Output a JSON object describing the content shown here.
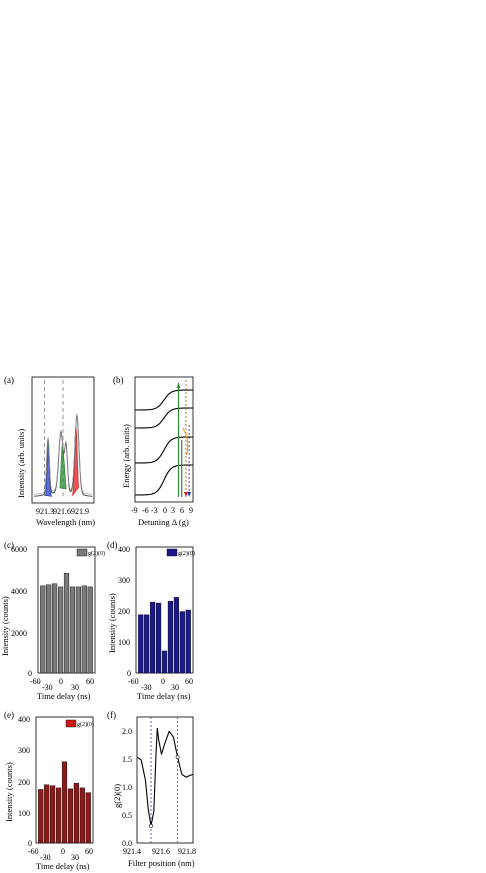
{
  "panels": [
    {
      "id": "a",
      "label": "(a)",
      "xlabel": "Wavelength (nm)",
      "ylabel": "Intensity (arb. units)"
    },
    {
      "id": "b",
      "label": "(b)",
      "xlabel": "Detuning Δ (g)",
      "ylabel": "Energy (arb. units)"
    },
    {
      "id": "c",
      "label": "(c)",
      "xlabel": "Time delay (ns)",
      "ylabel": "Intensity (counts)"
    },
    {
      "id": "d",
      "label": "(d)",
      "xlabel": "Time delay (ns)",
      "ylabel": "Intensity (counts)"
    },
    {
      "id": "e",
      "label": "(e)",
      "xlabel": "Time delay (ns)",
      "ylabel": "Intensity (counts)"
    },
    {
      "id": "f",
      "label": "(f)",
      "xlabel": "Filter position (nm)",
      "ylabel": "g(2)(0)"
    }
  ],
  "chart_data": [
    {
      "id": "a",
      "type": "line",
      "x_ticks": [
        "921.3",
        "921.6",
        "921.9"
      ],
      "xlim": [
        921.3,
        921.9
      ],
      "filters": [
        {
          "center": 921.46,
          "color": "#2b3fbf"
        },
        {
          "center": 921.6,
          "color": "#2e8b3a"
        },
        {
          "center": 921.72,
          "color": "#e02020"
        }
      ],
      "dashed_lines": [
        921.42,
        921.6
      ]
    },
    {
      "id": "b",
      "type": "line",
      "x_ticks": [
        "-9",
        "-6",
        "-3",
        "0",
        "3",
        "6",
        "9"
      ],
      "xlim": [
        -9,
        9
      ]
    },
    {
      "id": "c",
      "type": "bar",
      "legend": "g(2)(0)",
      "legend_color": "#7a7a7a",
      "bar_color": "#7a7a7a",
      "x_ticks": [
        "-60",
        "-30",
        "0",
        "30",
        "60"
      ],
      "y_ticks": [
        "0",
        "2000",
        "4000",
        "6000"
      ],
      "ylim": [
        0,
        6000
      ],
      "delays": [
        -50,
        -37.5,
        -25,
        -12.5,
        0,
        12.5,
        25,
        37.5,
        50
      ],
      "values": [
        4150,
        4200,
        4250,
        4100,
        4750,
        4100,
        4100,
        4150,
        4100
      ]
    },
    {
      "id": "d",
      "type": "bar",
      "legend": "g(2)(0)",
      "legend_color": "#1a1a8c",
      "bar_color": "#1a1a8c",
      "x_ticks": [
        "-60",
        "-30",
        "0",
        "30",
        "60"
      ],
      "y_ticks": [
        "0",
        "100",
        "200",
        "300",
        "400"
      ],
      "ylim": [
        0,
        400
      ],
      "delays": [
        -50,
        -37.5,
        -25,
        -12.5,
        0,
        12.5,
        25,
        37.5,
        50
      ],
      "values": [
        185,
        185,
        225,
        222,
        70,
        228,
        240,
        195,
        200
      ]
    },
    {
      "id": "e",
      "type": "bar",
      "legend": "g(2)(0)",
      "legend_color": "#cc1a1a",
      "bar_color": "#8b1a1a",
      "x_ticks": [
        "-60",
        "-30",
        "0",
        "30",
        "60"
      ],
      "y_ticks": [
        "0",
        "100",
        "200",
        "300",
        "400"
      ],
      "ylim": [
        0,
        400
      ],
      "delays": [
        -50,
        -37.5,
        -25,
        -12.5,
        0,
        12.5,
        25,
        37.5,
        50
      ],
      "values": [
        170,
        185,
        182,
        175,
        258,
        172,
        190,
        175,
        160
      ]
    },
    {
      "id": "f",
      "type": "line",
      "x_ticks": [
        "921.4",
        "921.6",
        "921.8"
      ],
      "xlim": [
        921.4,
        921.8
      ],
      "y_ticks": [
        "0.0",
        "0.5",
        "1.0",
        "1.5",
        "2.0"
      ],
      "ylim": [
        0,
        2.2
      ],
      "points": [
        [
          921.4,
          1.5
        ],
        [
          921.43,
          1.45
        ],
        [
          921.46,
          1.1
        ],
        [
          921.48,
          0.6
        ],
        [
          921.5,
          0.3
        ],
        [
          921.52,
          0.55
        ],
        [
          921.535,
          1.5
        ],
        [
          921.545,
          2.0
        ],
        [
          921.555,
          1.8
        ],
        [
          921.575,
          1.55
        ],
        [
          921.6,
          1.75
        ],
        [
          921.63,
          1.95
        ],
        [
          921.66,
          1.85
        ],
        [
          921.69,
          1.5
        ],
        [
          921.72,
          1.2
        ],
        [
          921.75,
          1.15
        ],
        [
          921.8,
          1.2
        ]
      ],
      "markers": [
        [
          921.5,
          0.3
        ],
        [
          921.69,
          1.5
        ]
      ],
      "vlines": [
        {
          "x": 921.5,
          "color": "#2b3fbf"
        },
        {
          "x": 921.69,
          "color": "#e02020"
        }
      ]
    }
  ]
}
